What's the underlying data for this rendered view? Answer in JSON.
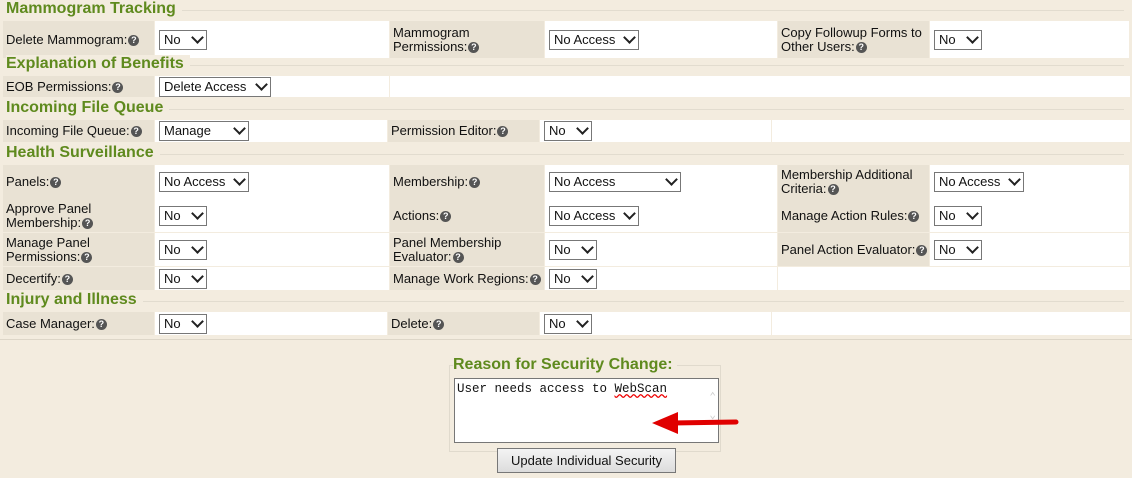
{
  "sections": [
    {
      "title": "Mammogram Tracking",
      "rows": [
        [
          {
            "label": "Delete Mammogram:",
            "value": "No"
          },
          {
            "label": "Mammogram Permissions:",
            "value": "No Access"
          },
          {
            "label": "Copy Followup Forms to Other Users:",
            "value": "No"
          }
        ]
      ]
    },
    {
      "title": "Explanation of Benefits",
      "rows": [
        [
          {
            "label": "EOB Permissions:",
            "value": "Delete Access"
          }
        ]
      ]
    },
    {
      "title": "Incoming File Queue",
      "rows": [
        [
          {
            "label": "Incoming File Queue:",
            "value": "Manage"
          },
          {
            "label": "Permission Editor:",
            "value": "No"
          }
        ]
      ]
    },
    {
      "title": "Health Surveillance",
      "rows": [
        [
          {
            "label": "Panels:",
            "value": "No Access"
          },
          {
            "label": "Membership:",
            "value": "No Access"
          },
          {
            "label": "Membership Additional Criteria:",
            "value": "No Access"
          }
        ],
        [
          {
            "label": "Approve Panel Membership:",
            "value": "No"
          },
          {
            "label": "Actions:",
            "value": "No Access"
          },
          {
            "label": "Manage Action Rules:",
            "value": "No"
          }
        ],
        [
          {
            "label": "Manage Panel Permissions:",
            "value": "No"
          },
          {
            "label": "Panel Membership Evaluator:",
            "value": "No"
          },
          {
            "label": "Panel Action Evaluator:",
            "value": "No"
          }
        ],
        [
          {
            "label": "Decertify:",
            "value": "No"
          },
          {
            "label": "Manage Work Regions:",
            "value": "No"
          }
        ]
      ]
    },
    {
      "title": "Injury and Illness",
      "rows": [
        [
          {
            "label": "Case Manager:",
            "value": "No"
          },
          {
            "label": "Delete:",
            "value": "No"
          }
        ]
      ]
    }
  ],
  "reason": {
    "title": "Reason for Security Change:",
    "text_before": "User needs access to ",
    "text_misspelled": "WebScan"
  },
  "update_button": "Update Individual Security",
  "colors": {
    "heading": "#5f8a1e",
    "background": "#f3ecdf",
    "label_cell": "#e9e2d4",
    "arrow": "#e00000"
  }
}
